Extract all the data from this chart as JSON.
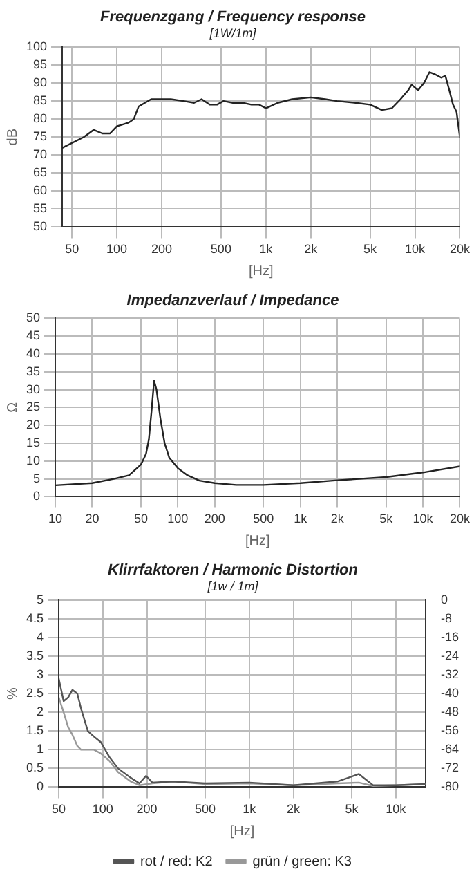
{
  "chart_data": [
    {
      "type": "line",
      "title": "Frequenzgang / Frequency response",
      "subtitle": "[1W/1m]",
      "xlabel": "[Hz]",
      "ylabel": "dB",
      "log": "x",
      "grid": true,
      "marker": "none",
      "xlim": [
        43,
        20000
      ],
      "xticks": [
        50,
        100,
        200,
        500,
        {
          "value": 1000,
          "label": "1k"
        },
        {
          "value": 2000,
          "label": "2k"
        },
        {
          "value": 5000,
          "label": "5k"
        },
        {
          "value": 10000,
          "label": "10k"
        },
        {
          "value": 20000,
          "label": "20k"
        }
      ],
      "ylim": [
        50,
        100
      ],
      "yticks": [
        50,
        55,
        60,
        65,
        70,
        75,
        80,
        85,
        90,
        95,
        100
      ],
      "series": [
        {
          "color": "#222222",
          "x": [
            43,
            60,
            70,
            80,
            90,
            100,
            120,
            130,
            140,
            170,
            200,
            230,
            280,
            330,
            370,
            420,
            470,
            520,
            600,
            700,
            800,
            900,
            1000,
            1200,
            1500,
            2000,
            2500,
            3000,
            4000,
            5000,
            6000,
            7000,
            8000,
            9000,
            9500,
            10500,
            11500,
            12500,
            13500,
            15000,
            16000,
            17000,
            18000,
            19000,
            20000
          ],
          "values": [
            72,
            75,
            77,
            76,
            76,
            78,
            79,
            80,
            83.5,
            85.5,
            85.5,
            85.5,
            85,
            84.5,
            85.5,
            84,
            84,
            85,
            84.5,
            84.5,
            84,
            84,
            83,
            84.5,
            85.5,
            86,
            85.5,
            85,
            84.5,
            84,
            82.5,
            83,
            85.5,
            88,
            89.5,
            88,
            90,
            93,
            92.5,
            91.5,
            92,
            88,
            84,
            82,
            75
          ]
        }
      ]
    },
    {
      "type": "line",
      "title": "Impedanzverlauf / Impedance",
      "xlabel": "[Hz]",
      "ylabel": "Ω",
      "log": "x",
      "grid": true,
      "marker": "none",
      "xlim": [
        10,
        20000
      ],
      "xticks": [
        10,
        20,
        50,
        100,
        200,
        500,
        {
          "value": 1000,
          "label": "1k"
        },
        {
          "value": 2000,
          "label": "2k"
        },
        {
          "value": 5000,
          "label": "5k"
        },
        {
          "value": 10000,
          "label": "10k"
        },
        {
          "value": 20000,
          "label": "20k"
        }
      ],
      "ylim": [
        0,
        50
      ],
      "yticks": [
        0,
        5,
        10,
        15,
        20,
        25,
        30,
        35,
        40,
        45,
        50
      ],
      "series": [
        {
          "color": "#222222",
          "x": [
            10,
            20,
            30,
            40,
            50,
            55,
            58,
            61,
            64,
            67,
            72,
            78,
            85,
            100,
            120,
            150,
            200,
            300,
            500,
            1000,
            2000,
            5000,
            10000,
            20000
          ],
          "values": [
            3.2,
            3.8,
            5,
            6,
            9,
            12,
            16,
            24,
            32.5,
            30,
            22,
            15,
            11,
            8,
            6,
            4.5,
            3.8,
            3.3,
            3.3,
            3.8,
            4.6,
            5.5,
            6.8,
            8.5
          ]
        }
      ]
    },
    {
      "type": "line",
      "title": "Klirrfaktoren / Harmonic Distortion",
      "subtitle": "[1w / 1m]",
      "xlabel": "[Hz]",
      "ylabel": "%",
      "log": "x",
      "grid": true,
      "marker": "none",
      "legend": "bottom",
      "xlim": [
        50,
        16000
      ],
      "xticks": [
        50,
        100,
        200,
        500,
        {
          "value": 1000,
          "label": "1k"
        },
        {
          "value": 2000,
          "label": "2k"
        },
        {
          "value": 5000,
          "label": "5k"
        },
        {
          "value": 10000,
          "label": "10k"
        }
      ],
      "ylim": [
        0,
        5
      ],
      "yticks": [
        0,
        0.5,
        1,
        1.5,
        2,
        2.5,
        3,
        3.5,
        4,
        4.5,
        5
      ],
      "y2lim": [
        -80,
        0
      ],
      "y2ticks": [
        -80,
        -72,
        -64,
        -56,
        -48,
        -40,
        -32,
        -24,
        -16,
        -8,
        0
      ],
      "series": [
        {
          "name": "rot / red: K2",
          "color": "#555555",
          "x": [
            50,
            54,
            58,
            62,
            67,
            71,
            79,
            87,
            97,
            111,
            127,
            155,
            178,
            197,
            218,
            300,
            500,
            1000,
            2000,
            4000,
            5600,
            7000,
            10000,
            16000
          ],
          "values": [
            2.9,
            2.3,
            2.4,
            2.6,
            2.5,
            2.1,
            1.5,
            1.35,
            1.2,
            0.8,
            0.5,
            0.25,
            0.1,
            0.3,
            0.12,
            0.15,
            0.1,
            0.12,
            0.05,
            0.15,
            0.35,
            0.05,
            0.05,
            0.08
          ]
        },
        {
          "name": "grün / green: K3",
          "color": "#999999",
          "x": [
            50,
            54,
            58,
            62,
            67,
            71,
            79,
            87,
            97,
            111,
            127,
            155,
            178,
            218,
            300,
            500,
            1000,
            2000,
            4000,
            5600,
            7000,
            10000,
            16000
          ],
          "values": [
            2.4,
            2,
            1.6,
            1.4,
            1.1,
            1,
            1,
            1,
            0.9,
            0.7,
            0.4,
            0.15,
            0.05,
            0.1,
            0.15,
            0.08,
            0.1,
            0.05,
            0.1,
            0.12,
            0.03,
            0.05,
            0.08
          ]
        }
      ]
    }
  ]
}
